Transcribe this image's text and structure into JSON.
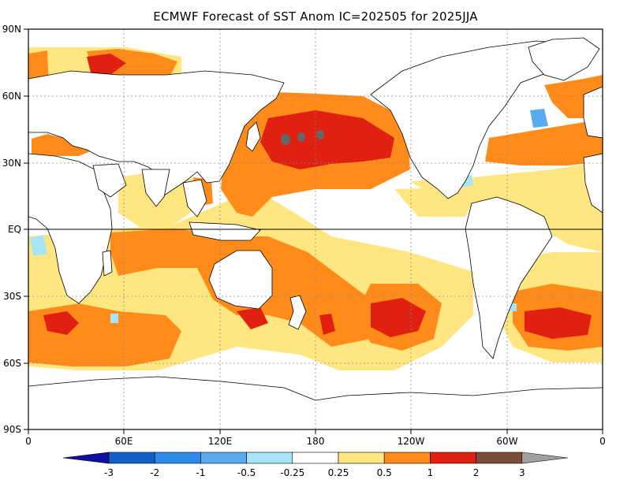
{
  "title": "ECMWF Forecast of SST Anom IC=202505 for 2025JJA",
  "axes": {
    "lat_labels": [
      "90N",
      "60N",
      "30N",
      "EQ",
      "30S",
      "60S",
      "90S"
    ],
    "lon_labels": [
      "0",
      "60E",
      "120E",
      "180",
      "120W",
      "60W",
      "0"
    ]
  },
  "colorbar": {
    "tick_labels": [
      "-3",
      "-2",
      "-1",
      "-0.5",
      "-0.25",
      "0.25",
      "0.5",
      "1",
      "2",
      "3"
    ],
    "colors": [
      "#1010a0",
      "#1060c8",
      "#2e8ae8",
      "#5aaaf0",
      "#a8e4f8",
      "#ffffff",
      "#ffe680",
      "#ff8c1a",
      "#e02010",
      "#7a4c3a",
      "#a0a0a0"
    ]
  },
  "palette": {
    "land": "#ffffff",
    "border": "#000000",
    "grid": "#888888",
    "light": "#ffe680",
    "medium": "#ff8c1a",
    "strong": "#e02010",
    "extreme": "#666666",
    "cool": "#a8e4f8",
    "cool_strong": "#5aaaf0"
  }
}
